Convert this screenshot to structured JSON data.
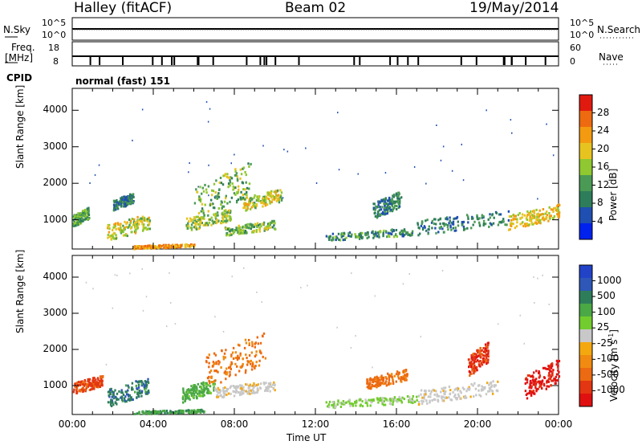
{
  "header": {
    "station": "Halley (fitACF)",
    "beam": "Beam 02",
    "date": "19/May/2014"
  },
  "top_panels": {
    "nsky_label": "N.Sky",
    "nsearch_label": "N.Search",
    "nsky_ticks": [
      "10^5",
      "10^0"
    ],
    "nsearch_ticks": [
      "10^5",
      "10^0"
    ],
    "freq_label_line1": "Freq.",
    "freq_label_line2": "[MHz]",
    "freq_ticks": [
      "18",
      "8"
    ],
    "nave_label": "Nave",
    "nave_ticks": [
      "60",
      "0"
    ],
    "cpid_label": "CPID",
    "cpid_value": "normal (fast) 151"
  },
  "colors": {
    "power_scale": [
      "#0022ee",
      "#1f4fb0",
      "#2e7d5a",
      "#4a9a55",
      "#8fc830",
      "#e7c320",
      "#f39a10",
      "#ee6a10",
      "#e11a10"
    ],
    "velocity_scale": [
      "#2243c8",
      "#2e57b8",
      "#2e7d5a",
      "#4aa845",
      "#72cc2e",
      "#c8c8c8",
      "#f4a810",
      "#f08a10",
      "#ec6a12",
      "#e33612",
      "#e01010"
    ]
  },
  "chart_data": [
    {
      "type": "heatmap",
      "panel": "power",
      "xlabel": "",
      "ylabel": "Slant Range [km]",
      "xlim": [
        0,
        24
      ],
      "ylim": [
        200,
        4600
      ],
      "yticks": [
        "1000",
        "2000",
        "3000",
        "4000"
      ],
      "colorbar_label": "Power [dB]",
      "colorbar_ticks": [
        "4",
        "8",
        "12",
        "16",
        "20",
        "24",
        "28"
      ],
      "colorbar_range": [
        0,
        32
      ],
      "features": [
        {
          "t0": 0.0,
          "t1": 0.8,
          "r0": 900,
          "r1": 1300,
          "level": 12
        },
        {
          "t0": 1.7,
          "t1": 3.8,
          "r0": 550,
          "r1": 1100,
          "level": 18
        },
        {
          "t0": 2.0,
          "t1": 3.0,
          "r0": 1350,
          "r1": 1700,
          "level": 8
        },
        {
          "t0": 5.6,
          "t1": 7.8,
          "r0": 800,
          "r1": 1250,
          "level": 16
        },
        {
          "t0": 6.0,
          "t1": 8.8,
          "r0": 1200,
          "r1": 2400,
          "level": 14
        },
        {
          "t0": 8.4,
          "t1": 10.3,
          "r0": 1350,
          "r1": 1800,
          "level": 18
        },
        {
          "t0": 7.5,
          "t1": 10.0,
          "r0": 650,
          "r1": 950,
          "level": 14
        },
        {
          "t0": 12.5,
          "t1": 16.8,
          "r0": 500,
          "r1": 750,
          "level": 10
        },
        {
          "t0": 14.8,
          "t1": 16.2,
          "r0": 1150,
          "r1": 1700,
          "level": 8
        },
        {
          "t0": 17.0,
          "t1": 21.5,
          "r0": 700,
          "r1": 1200,
          "level": 8
        },
        {
          "t0": 21.5,
          "t1": 24.0,
          "r0": 850,
          "r1": 1350,
          "level": 20
        },
        {
          "t0": 3.0,
          "t1": 6.0,
          "r0": 250,
          "r1": 350,
          "level": 24
        }
      ]
    },
    {
      "type": "heatmap",
      "panel": "velocity",
      "xlabel": "Time UT",
      "ylabel": "Slant Range [km]",
      "xlim": [
        0,
        24
      ],
      "ylim": [
        200,
        4600
      ],
      "xticks": [
        "00:00",
        "04:00",
        "08:00",
        "12:00",
        "16:00",
        "20:00",
        "00:00"
      ],
      "yticks": [
        "1000",
        "2000",
        "3000",
        "4000"
      ],
      "colorbar_label": "Velocity [m s^-1]",
      "colorbar_ticks": [
        "1000",
        "500",
        "100",
        "25",
        "-25",
        "-100",
        "-500",
        "-1000"
      ],
      "features": [
        {
          "t0": 0.0,
          "t1": 1.5,
          "r0": 850,
          "r1": 1250,
          "velocity": -300
        },
        {
          "t0": 1.7,
          "t1": 3.8,
          "r0": 550,
          "r1": 1150,
          "velocity": 400
        },
        {
          "t0": 5.4,
          "t1": 7.0,
          "r0": 650,
          "r1": 1150,
          "velocity": 150
        },
        {
          "t0": 6.5,
          "t1": 9.5,
          "r0": 1150,
          "r1": 2300,
          "velocity": -120
        },
        {
          "t0": 7.0,
          "t1": 10.0,
          "r0": 750,
          "r1": 1100,
          "velocity": 0
        },
        {
          "t0": 12.5,
          "t1": 17.0,
          "r0": 450,
          "r1": 700,
          "velocity": 60
        },
        {
          "t0": 14.5,
          "t1": 16.5,
          "r0": 1000,
          "r1": 1400,
          "velocity": -150
        },
        {
          "t0": 17.0,
          "t1": 21.0,
          "r0": 600,
          "r1": 1100,
          "velocity": 0
        },
        {
          "t0": 19.5,
          "t1": 20.5,
          "r0": 1400,
          "r1": 2100,
          "velocity": -400
        },
        {
          "t0": 22.3,
          "t1": 24.0,
          "r0": 800,
          "r1": 1600,
          "velocity": -700
        },
        {
          "t0": 3.0,
          "t1": 6.5,
          "r0": 250,
          "r1": 350,
          "velocity": 200
        }
      ]
    }
  ]
}
